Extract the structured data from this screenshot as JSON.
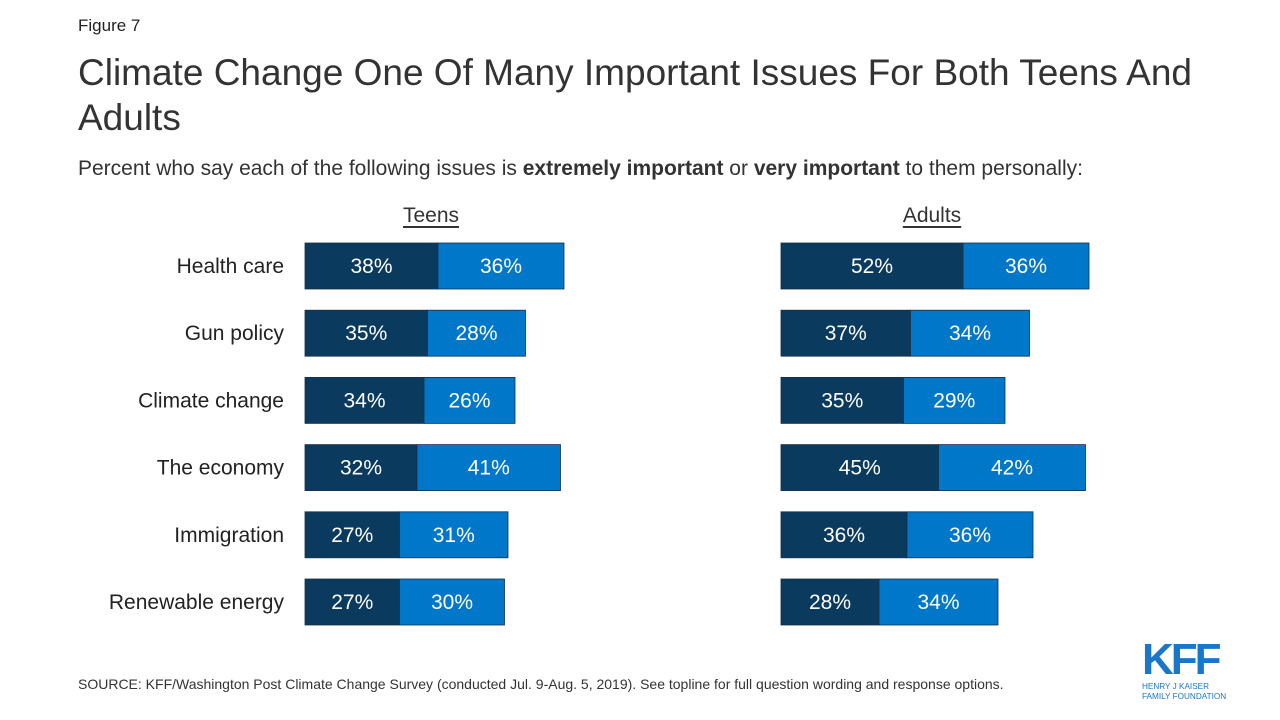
{
  "figure_label": "Figure 7",
  "subtitle": {
    "part1": "Percent who say each of the following issues is ",
    "bold1": "extremely important",
    "part2": " or ",
    "bold2": "very important",
    "part3": " to them personally:"
  },
  "source": "SOURCE: KFF/Washington Post Climate Change Survey (conducted Jul. 9-Aug. 5, 2019). See topline for full question wording and response options.",
  "logo": {
    "mark": "KFF",
    "line1": "HENRY J KAISER",
    "line2": "FAMILY FOUNDATION"
  },
  "colors": {
    "extremely": "#0b3a5f",
    "very": "#0077c8",
    "label_text": "#ffffff"
  },
  "chart_data": {
    "type": "bar",
    "orientation": "horizontal",
    "stacked": true,
    "title": "Climate Change One Of Many Important Issues For Both Teens And Adults",
    "categories": [
      "Health care",
      "Gun policy",
      "Climate change",
      "The economy",
      "Immigration",
      "Renewable energy"
    ],
    "panels": [
      {
        "title": "Teens",
        "series": [
          {
            "values": [
              38,
              35,
              34,
              32,
              27,
              27
            ],
            "labels": [
              "38%",
              "35%",
              "34%",
              "32%",
              "27%",
              "27%"
            ]
          },
          {
            "values": [
              36,
              28,
              26,
              41,
              31,
              30
            ],
            "labels": [
              "36%",
              "28%",
              "26%",
              "41%",
              "31%",
              "30%"
            ]
          }
        ]
      },
      {
        "title": "Adults",
        "series": [
          {
            "values": [
              52,
              37,
              35,
              45,
              36,
              28
            ],
            "labels": [
              "52%",
              "37%",
              "35%",
              "45%",
              "36%",
              "28%"
            ]
          },
          {
            "values": [
              36,
              34,
              29,
              42,
              36,
              34
            ],
            "labels": [
              "36%",
              "34%",
              "29%",
              "42%",
              "36%",
              "34%"
            ]
          }
        ]
      }
    ]
  }
}
